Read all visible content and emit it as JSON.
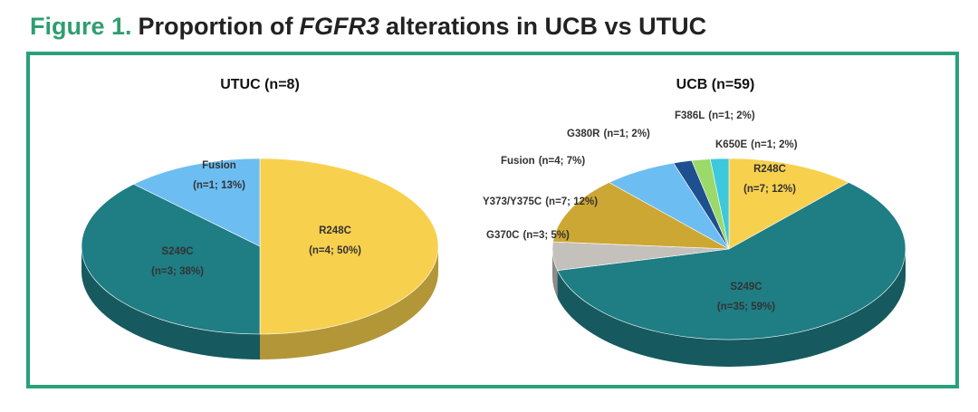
{
  "figure": {
    "label": "Figure 1.",
    "title_before": "Proportion of",
    "title_italic": "FGFR3",
    "title_after": "alterations in UCB vs UTUC"
  },
  "chart_data": [
    {
      "type": "pie",
      "title": "UTUC (n=8)",
      "categories": [
        "R248C",
        "S249C",
        "Fusion"
      ],
      "values": [
        4,
        3,
        1
      ],
      "value_labels": [
        "(n=4; 50%)",
        "(n=3; 38%)",
        "(n=1; 13%)"
      ],
      "colors": [
        "#f7d04e",
        "#1f7d84",
        "#6cbef2"
      ]
    },
    {
      "type": "pie",
      "title": "UCB (n=59)",
      "categories": [
        "R248C",
        "S249C",
        "G370C",
        "Y373/Y375C",
        "Fusion",
        "G380R",
        "F386L",
        "K650E"
      ],
      "values": [
        7,
        35,
        3,
        7,
        4,
        1,
        1,
        1
      ],
      "value_labels": [
        "(n=7; 12%)",
        "(n=35; 59%)",
        "(n=3; 5%)",
        "(n=7; 12%)",
        "(n=4; 7%)",
        "(n=1; 2%)",
        "(n=1; 2%)",
        "(n=1; 2%)"
      ],
      "colors": [
        "#f7d04e",
        "#1f7d84",
        "#c4c0bb",
        "#cda733",
        "#6cbef2",
        "#1e4f8f",
        "#9bd96a",
        "#3ec8db"
      ]
    }
  ]
}
